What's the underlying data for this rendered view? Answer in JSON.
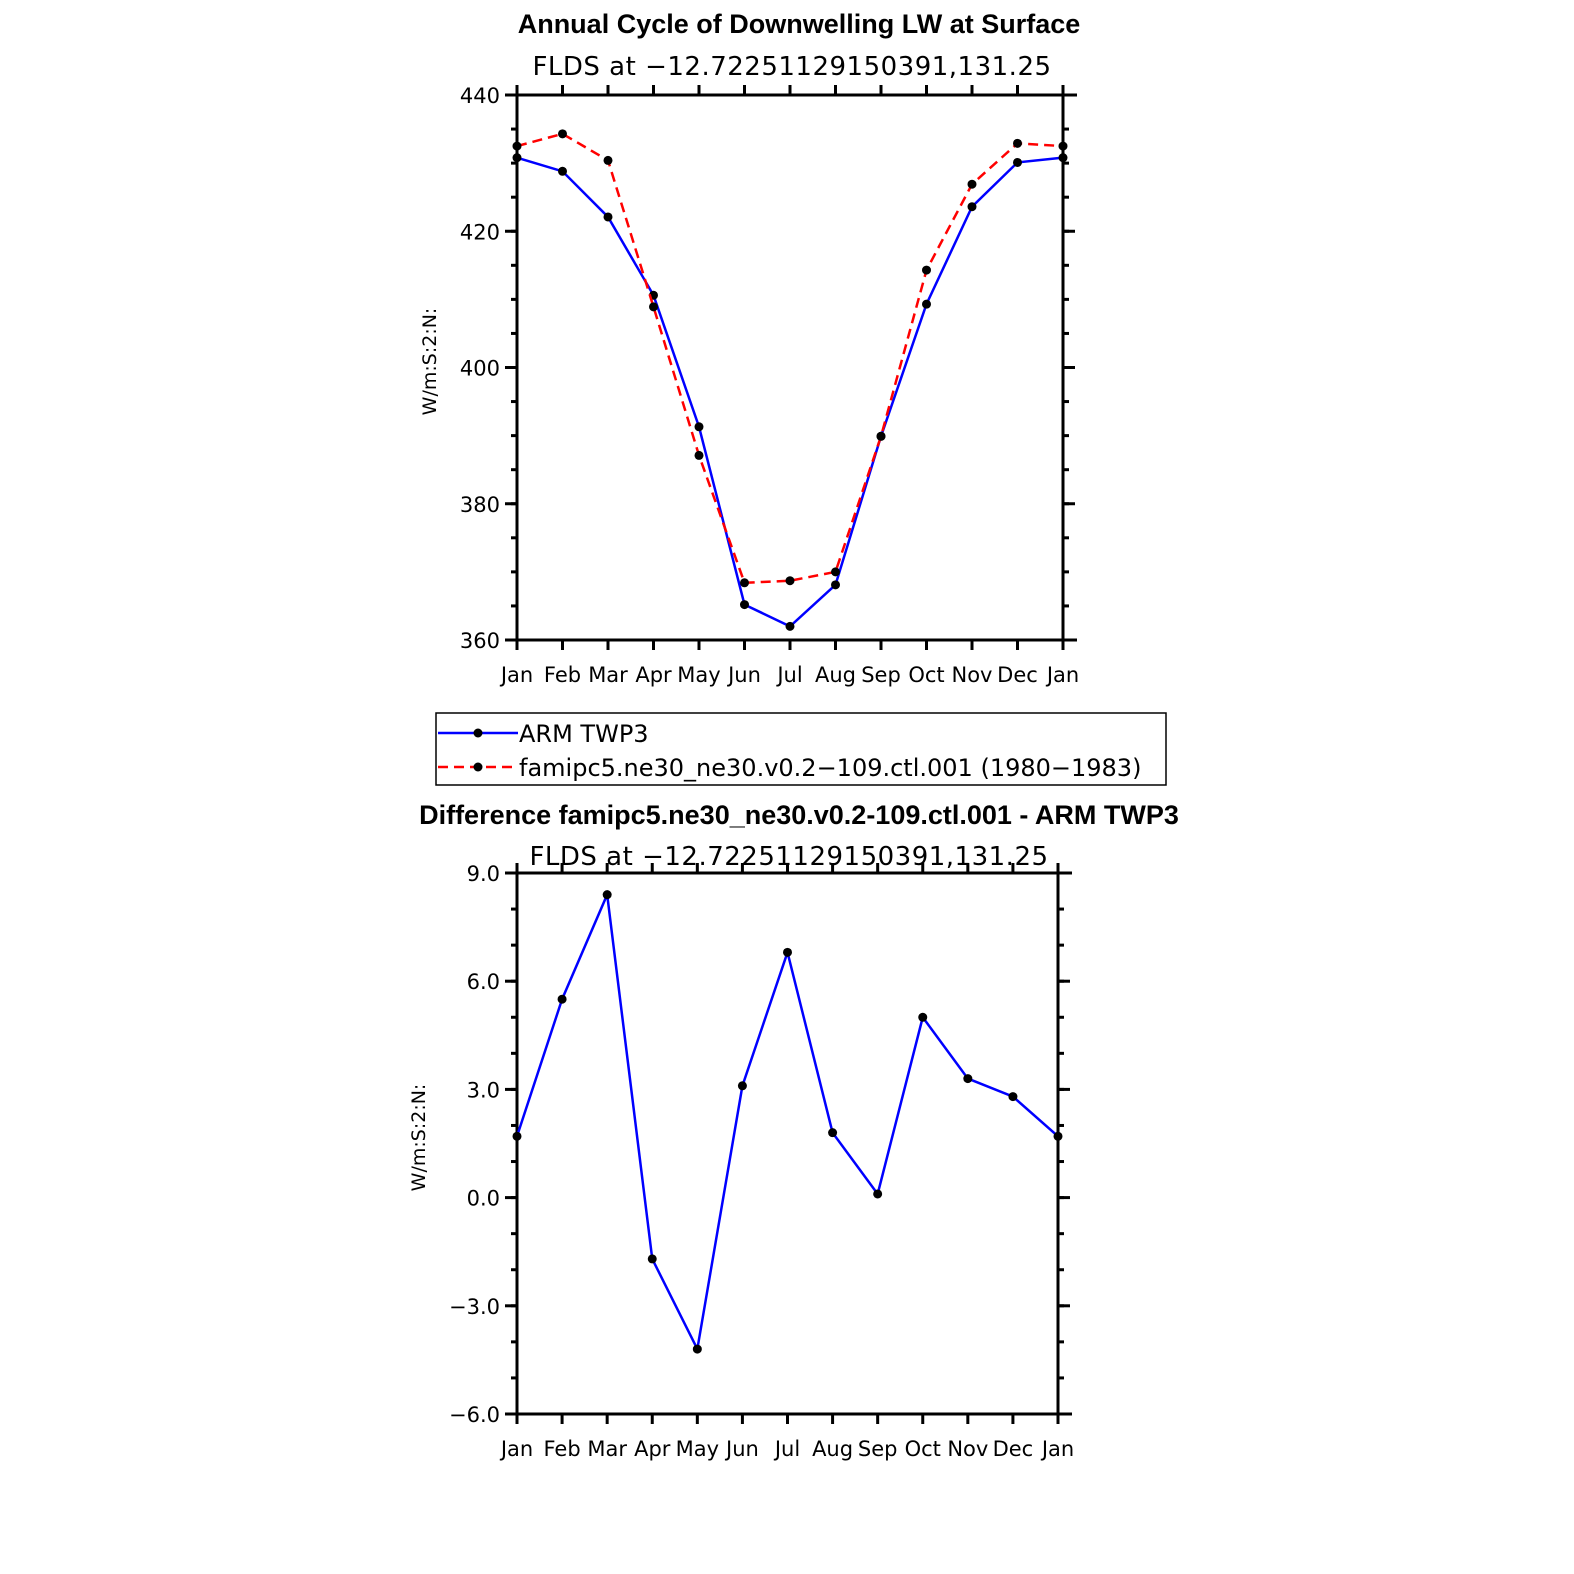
{
  "chart_data": [
    {
      "type": "line",
      "title": "Annual Cycle of Downwelling LW at Surface",
      "subtitle": "FLDS at −12.72251129150391,131.25",
      "ylabel": "W/m:S:2:N:",
      "xlabel": "",
      "categories": [
        "Jan",
        "Feb",
        "Mar",
        "Apr",
        "May",
        "Jun",
        "Jul",
        "Aug",
        "Sep",
        "Oct",
        "Nov",
        "Dec",
        "Jan"
      ],
      "ylim": [
        360,
        440
      ],
      "yticks": [
        "360",
        "380",
        "400",
        "420",
        "440"
      ],
      "grid": false,
      "legend_position": "below",
      "series": [
        {
          "name": "ARM TWP3",
          "color": "#0000ff",
          "dash": "solid",
          "values": [
            430.8,
            428.8,
            422.1,
            410.6,
            391.3,
            365.2,
            362.0,
            368.1,
            389.9,
            409.3,
            423.6,
            430.1,
            430.8
          ]
        },
        {
          "name": "famipc5.ne30_ne30.v0.2−109.ctl.001 (1980−1983)",
          "color": "#ff0000",
          "dash": "dashed",
          "values": [
            432.5,
            434.3,
            430.4,
            408.9,
            387.1,
            368.4,
            368.7,
            370.0,
            389.9,
            414.3,
            426.9,
            432.9,
            432.5
          ]
        }
      ]
    },
    {
      "type": "line",
      "title": "Difference famipc5.ne30_ne30.v0.2-109.ctl.001 - ARM TWP3",
      "subtitle": "FLDS at −12.72251129150391,131.25",
      "ylabel": "W/m:S:2:N:",
      "xlabel": "",
      "categories": [
        "Jan",
        "Feb",
        "Mar",
        "Apr",
        "May",
        "Jun",
        "Jul",
        "Aug",
        "Sep",
        "Oct",
        "Nov",
        "Dec",
        "Jan"
      ],
      "ylim": [
        -6.0,
        9.0
      ],
      "yticks": [
        "−6.0",
        "−3.0",
        "0.0",
        "3.0",
        "6.0",
        "9.0"
      ],
      "grid": false,
      "series": [
        {
          "name": "",
          "color": "#0000ff",
          "dash": "solid",
          "values": [
            1.7,
            5.5,
            8.4,
            -1.7,
            -4.2,
            3.1,
            6.8,
            1.8,
            0.1,
            5.0,
            3.3,
            2.8,
            1.7
          ]
        }
      ]
    }
  ]
}
